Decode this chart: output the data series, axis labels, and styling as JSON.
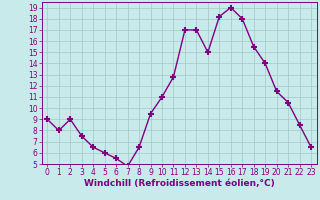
{
  "x": [
    0,
    1,
    2,
    3,
    4,
    5,
    6,
    7,
    8,
    9,
    10,
    11,
    12,
    13,
    14,
    15,
    16,
    17,
    18,
    19,
    20,
    21,
    22,
    23
  ],
  "y": [
    9,
    8,
    9,
    7.5,
    6.5,
    6,
    5.5,
    4.8,
    6.5,
    9.5,
    11,
    12.8,
    17,
    17,
    15,
    18.2,
    19,
    18,
    15.5,
    14,
    11.5,
    10.5,
    8.5,
    6.5
  ],
  "line_color": "#800080",
  "marker": "+",
  "marker_size": 4,
  "bg_color": "#c8eaea",
  "grid_color": "#a0c8c8",
  "xlabel": "Windchill (Refroidissement éolien,°C)",
  "ylim": [
    5,
    19.5
  ],
  "xlim": [
    -0.5,
    23.5
  ],
  "yticks": [
    5,
    6,
    7,
    8,
    9,
    10,
    11,
    12,
    13,
    14,
    15,
    16,
    17,
    18,
    19
  ],
  "xticks": [
    0,
    1,
    2,
    3,
    4,
    5,
    6,
    7,
    8,
    9,
    10,
    11,
    12,
    13,
    14,
    15,
    16,
    17,
    18,
    19,
    20,
    21,
    22,
    23
  ],
  "tick_color": "#800080",
  "label_color": "#800080",
  "font_size": 5.5,
  "xlabel_fontsize": 6.5,
  "linewidth": 1.0,
  "marker_thickness": 1.5
}
